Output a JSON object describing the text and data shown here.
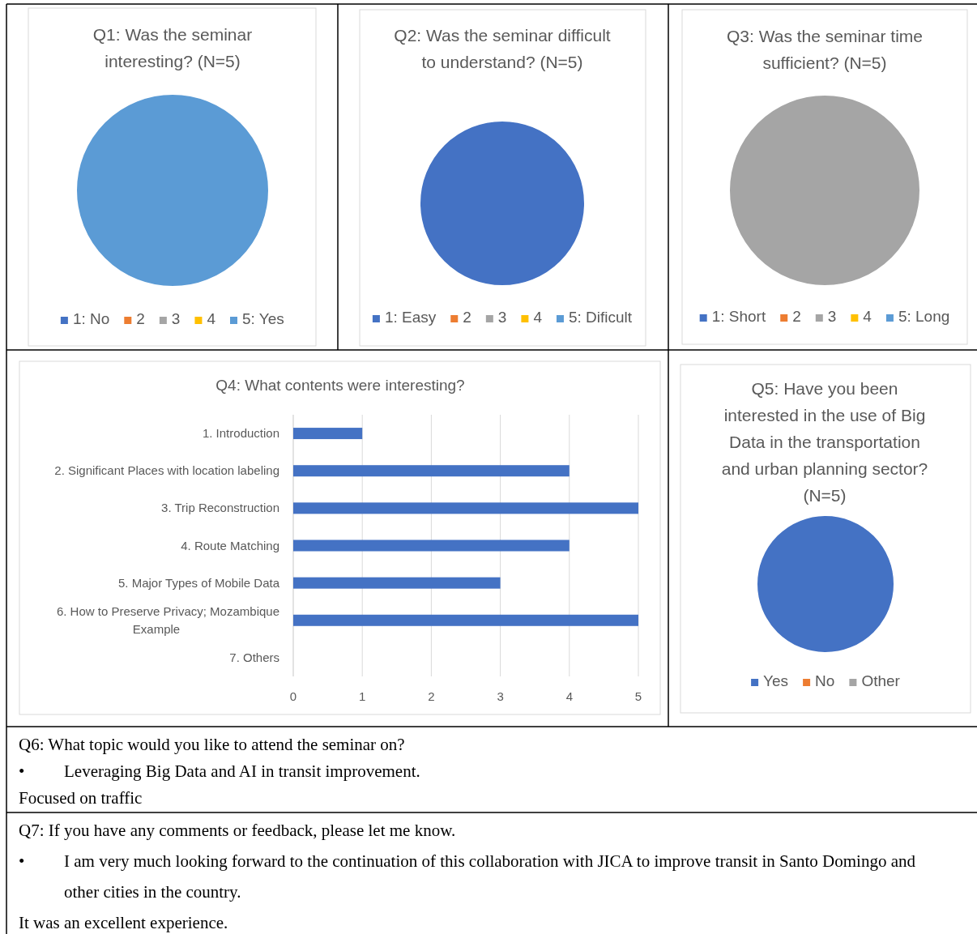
{
  "chart_data": [
    {
      "type": "pie",
      "title": "Q1: Was the seminar interesting? (N=5)",
      "categories": [
        "1: No",
        "2",
        "3",
        "4",
        "5: Yes"
      ],
      "values": [
        0,
        0,
        0,
        0,
        100
      ],
      "colors": [
        "#4472c4",
        "#ed7d31",
        "#a5a5a5",
        "#ffc000",
        "#5b9bd5"
      ],
      "legend": "bottom"
    },
    {
      "type": "pie",
      "title": "Q2: Was the seminar difficult to understand? (N=5)",
      "categories": [
        "1: Easy",
        "2",
        "3",
        "4",
        "5: Dificult"
      ],
      "values": [
        100,
        0,
        0,
        0,
        0
      ],
      "colors": [
        "#4472c4",
        "#ed7d31",
        "#a5a5a5",
        "#ffc000",
        "#5b9bd5"
      ],
      "legend": "bottom"
    },
    {
      "type": "pie",
      "title": "Q3: Was the seminar time sufficient? (N=5)",
      "categories": [
        "1: Short",
        "2",
        "3",
        "4",
        "5: Long"
      ],
      "values": [
        0,
        0,
        100,
        0,
        0
      ],
      "colors": [
        "#4472c4",
        "#ed7d31",
        "#a5a5a5",
        "#ffc000",
        "#5b9bd5"
      ],
      "legend": "bottom"
    },
    {
      "type": "bar",
      "orientation": "horizontal",
      "title": "Q4: What contents were interesting?",
      "categories": [
        "1. Introduction",
        "2. Significant Places with location labeling",
        "3. Trip Reconstruction",
        "4. Route Matching",
        "5. Major Types of Mobile Data",
        "6. How to Preserve Privacy; Mozambique Example",
        "7. Others"
      ],
      "values": [
        1,
        4,
        5,
        4,
        3,
        5,
        0
      ],
      "color": "#4472c4",
      "xlim": [
        0,
        5
      ],
      "xticks": [
        0,
        1,
        2,
        3,
        4,
        5
      ],
      "grid": "x"
    },
    {
      "type": "pie",
      "title": "Q5: Have you been interested in the use of Big Data in the transportation and urban planning sector? (N=5)",
      "categories": [
        "Yes",
        "No",
        "Other"
      ],
      "values": [
        100,
        0,
        0
      ],
      "colors": [
        "#4472c4",
        "#ed7d31",
        "#a5a5a5"
      ],
      "legend": "bottom"
    },
    {
      "type": "other",
      "title": "Q6: What topic would you like to attend the seminar on?",
      "annotations": [
        "•\tLeveraging Big Data and AI in transit improvement.",
        "Focused on traffic"
      ]
    },
    {
      "type": "other",
      "title": "Q7: If you have any comments or feedback, please let me know.",
      "annotations": [
        "•\tI am very much looking forward to the continuation of this collaboration with JICA to improve transit in Santo Domingo and other cities in the country.",
        "It was an excellent experience."
      ]
    }
  ]
}
